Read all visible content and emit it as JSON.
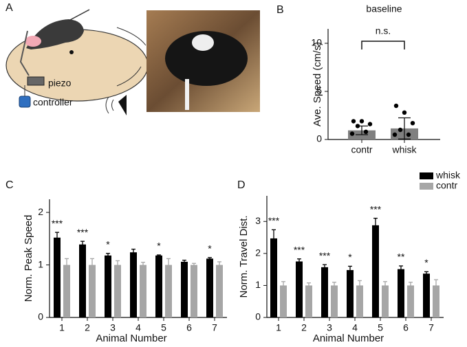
{
  "panel_labels": [
    "A",
    "B",
    "C",
    "D"
  ],
  "panel_a": {
    "labels": [
      "piezo",
      "controller"
    ]
  },
  "chart_data": [
    {
      "type": "bar",
      "title": "baseline",
      "ylabel": "Ave. Speed (cm/s)",
      "categories": [
        "contr",
        "whisk"
      ],
      "values": [
        0.95,
        1.15
      ],
      "errors": [
        0.45,
        1.1
      ],
      "points": [
        [
          1.9,
          1.9,
          1.6,
          1.4,
          0.8,
          0.6
        ],
        [
          3.5,
          2.8,
          1.7,
          1.0,
          0.5,
          0.5
        ]
      ],
      "color": "#808080",
      "point_color": "#000000",
      "annotation": "n.s.",
      "ylim": [
        0,
        11.5
      ],
      "yticks": [
        0,
        5,
        10
      ]
    },
    {
      "type": "grouped_bar",
      "ylabel": "Norm. Peak Speed",
      "xlabel": "Animal Number",
      "categories": [
        "1",
        "2",
        "3",
        "4",
        "5",
        "6",
        "7"
      ],
      "series": [
        {
          "name": "whisk",
          "color": "#000000",
          "values": [
            1.52,
            1.39,
            1.18,
            1.24,
            1.18,
            1.06,
            1.12
          ],
          "errors": [
            0.1,
            0.06,
            0.04,
            0.06,
            0.01,
            0.03,
            0.02
          ]
        },
        {
          "name": "contr",
          "color": "#a6a6a6",
          "values": [
            1.0,
            1.0,
            1.0,
            1.0,
            1.0,
            1.0,
            1.0
          ],
          "errors": [
            0.12,
            0.12,
            0.08,
            0.05,
            0.12,
            0.03,
            0.06
          ]
        }
      ],
      "annotations": [
        "***",
        "***",
        "*",
        null,
        "*",
        null,
        "*"
      ],
      "ylim": [
        0,
        2.25
      ],
      "yticks": [
        0,
        1,
        2
      ]
    },
    {
      "type": "grouped_bar",
      "ylabel": "Norm. Travel Dist.",
      "xlabel": "Animal Number",
      "categories": [
        "1",
        "2",
        "3",
        "4",
        "5",
        "6",
        "7"
      ],
      "series": [
        {
          "name": "whisk",
          "color": "#000000",
          "values": [
            2.47,
            1.75,
            1.57,
            1.48,
            2.88,
            1.51,
            1.37
          ],
          "errors": [
            0.27,
            0.08,
            0.08,
            0.12,
            0.22,
            0.1,
            0.06
          ]
        },
        {
          "name": "contr",
          "color": "#a6a6a6",
          "values": [
            1.0,
            1.0,
            1.0,
            1.0,
            1.0,
            1.0,
            1.0
          ],
          "errors": [
            0.12,
            0.08,
            0.1,
            0.15,
            0.12,
            0.1,
            0.18
          ]
        }
      ],
      "annotations": [
        "***",
        "***",
        "***",
        "*",
        "***",
        "**",
        "*"
      ],
      "ylim": [
        0,
        3.8
      ],
      "yticks": [
        0,
        1,
        2,
        3
      ],
      "legend": "top-right"
    }
  ]
}
